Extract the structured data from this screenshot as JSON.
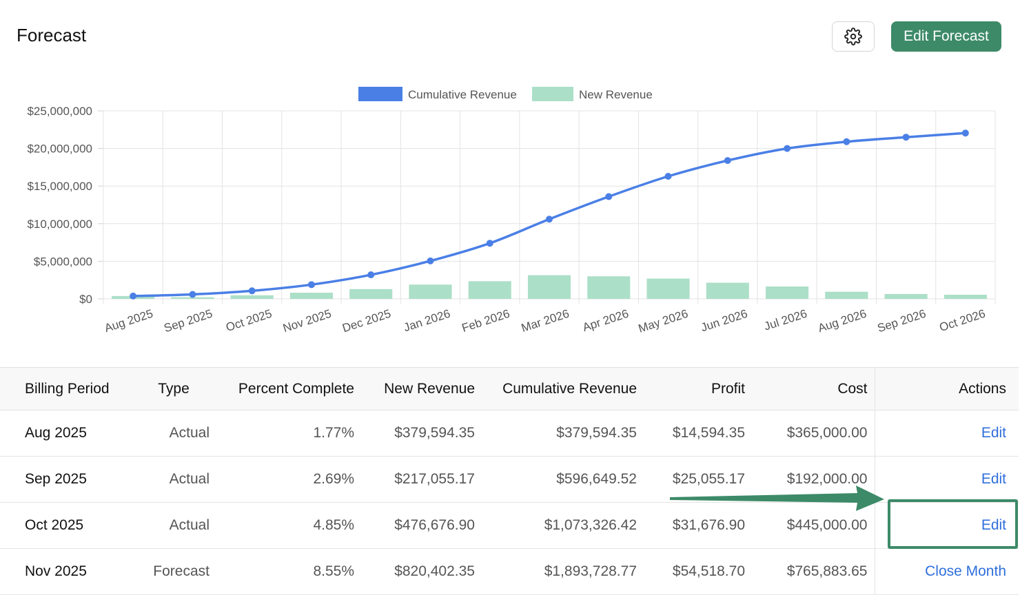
{
  "header": {
    "title": "Forecast",
    "settings_icon": "gear-icon",
    "edit_label": "Edit Forecast"
  },
  "colors": {
    "cumulative_line": "#4a7fe6",
    "new_bar": "#acdfc8",
    "primary_button": "#3d8a68",
    "link": "#2f6fdc"
  },
  "chart_data": {
    "type": "bar",
    "categories": [
      "Aug 2025",
      "Sep 2025",
      "Oct 2025",
      "Nov 2025",
      "Dec 2025",
      "Jan 2026",
      "Feb 2026",
      "Mar 2026",
      "Apr 2026",
      "May 2026",
      "Jun 2026",
      "Jul 2026",
      "Aug 2026",
      "Sep 2026",
      "Oct 2026"
    ],
    "series": [
      {
        "name": "Cumulative Revenue",
        "type": "line",
        "values": [
          379594.35,
          596649.52,
          1073326.42,
          1893728.77,
          3200000,
          5050000,
          7400000,
          10600000,
          13600000,
          16300000,
          18400000,
          20000000,
          20900000,
          21500000,
          22050000
        ]
      },
      {
        "name": "New Revenue",
        "type": "bar",
        "values": [
          379594.35,
          217055.17,
          476676.9,
          820402.35,
          1300000,
          1900000,
          2350000,
          3150000,
          3000000,
          2700000,
          2150000,
          1650000,
          950000,
          650000,
          550000
        ]
      }
    ],
    "y_ticks": [
      "$0",
      "$5,000,000",
      "$10,000,000",
      "$15,000,000",
      "$20,000,000",
      "$25,000,000"
    ],
    "ylim": [
      0,
      25000000
    ],
    "grid": true,
    "legend": "top-center"
  },
  "table": {
    "columns": [
      "Billing Period",
      "Type",
      "Percent Complete",
      "New Revenue",
      "Cumulative Revenue",
      "Profit",
      "Cost",
      "Actions"
    ],
    "rows": [
      {
        "period": "Aug 2025",
        "type": "Actual",
        "percent": "1.77%",
        "new_revenue": "$379,594.35",
        "cumulative": "$379,594.35",
        "profit": "$14,594.35",
        "cost": "$365,000.00",
        "action": "Edit"
      },
      {
        "period": "Sep 2025",
        "type": "Actual",
        "percent": "2.69%",
        "new_revenue": "$217,055.17",
        "cumulative": "$596,649.52",
        "profit": "$25,055.17",
        "cost": "$192,000.00",
        "action": "Edit"
      },
      {
        "period": "Oct 2025",
        "type": "Actual",
        "percent": "4.85%",
        "new_revenue": "$476,676.90",
        "cumulative": "$1,073,326.42",
        "profit": "$31,676.90",
        "cost": "$445,000.00",
        "action": "Edit"
      },
      {
        "period": "Nov 2025",
        "type": "Forecast",
        "percent": "8.55%",
        "new_revenue": "$820,402.35",
        "cumulative": "$1,893,728.77",
        "profit": "$54,518.70",
        "cost": "$765,883.65",
        "action": "Close Month"
      }
    ]
  }
}
